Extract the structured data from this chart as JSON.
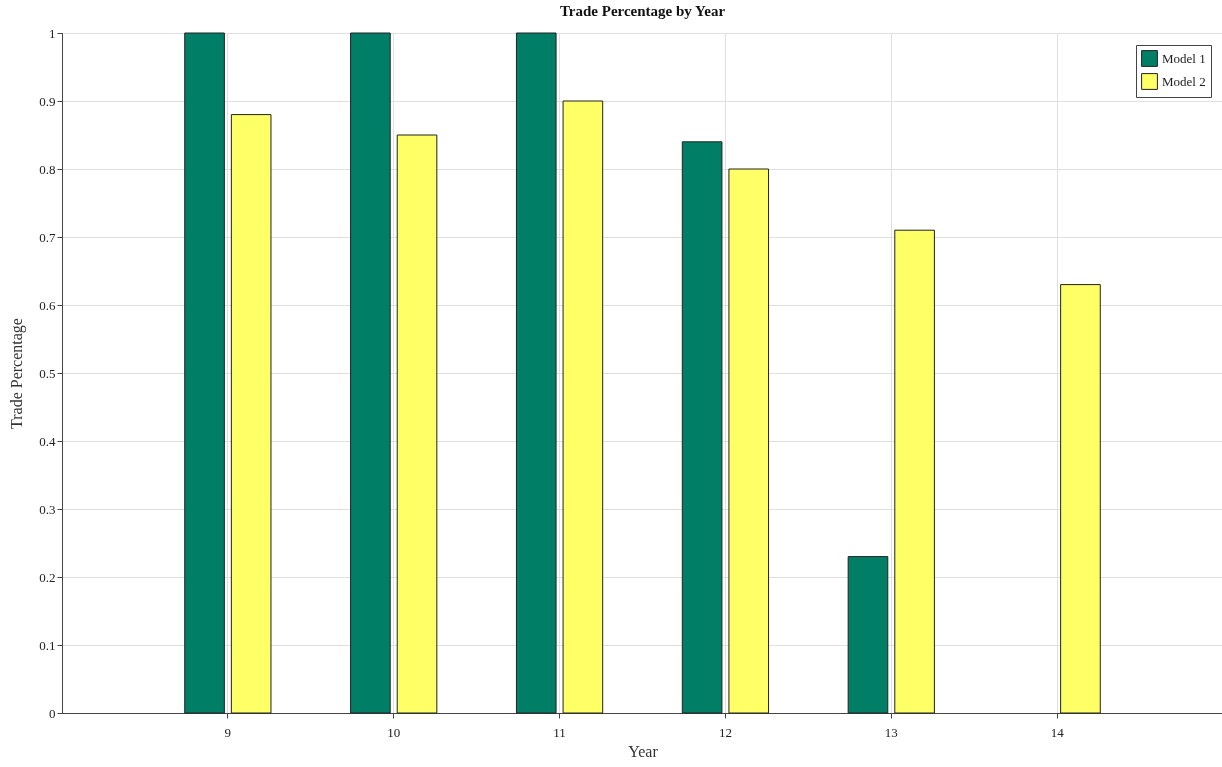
{
  "chart_data": {
    "type": "bar",
    "title": "Trade Percentage by Year",
    "xlabel": "Year",
    "ylabel": "Trade Percentage",
    "categories": [
      "9",
      "10",
      "11",
      "12",
      "13",
      "14"
    ],
    "series": [
      {
        "name": "Model 1",
        "color": "#007f66",
        "values": [
          1,
          1,
          1,
          0.84,
          0.23,
          null
        ]
      },
      {
        "name": "Model 2",
        "color": "#ffff66",
        "values": [
          0.88,
          0.85,
          0.9,
          0.8,
          0.71,
          0.63
        ]
      }
    ],
    "ylim": [
      0,
      1
    ],
    "yticks": [
      0,
      0.1,
      0.2,
      0.3,
      0.4,
      0.5,
      0.6,
      0.7,
      0.8,
      0.9,
      1
    ],
    "grid": true,
    "legend": "top right"
  }
}
